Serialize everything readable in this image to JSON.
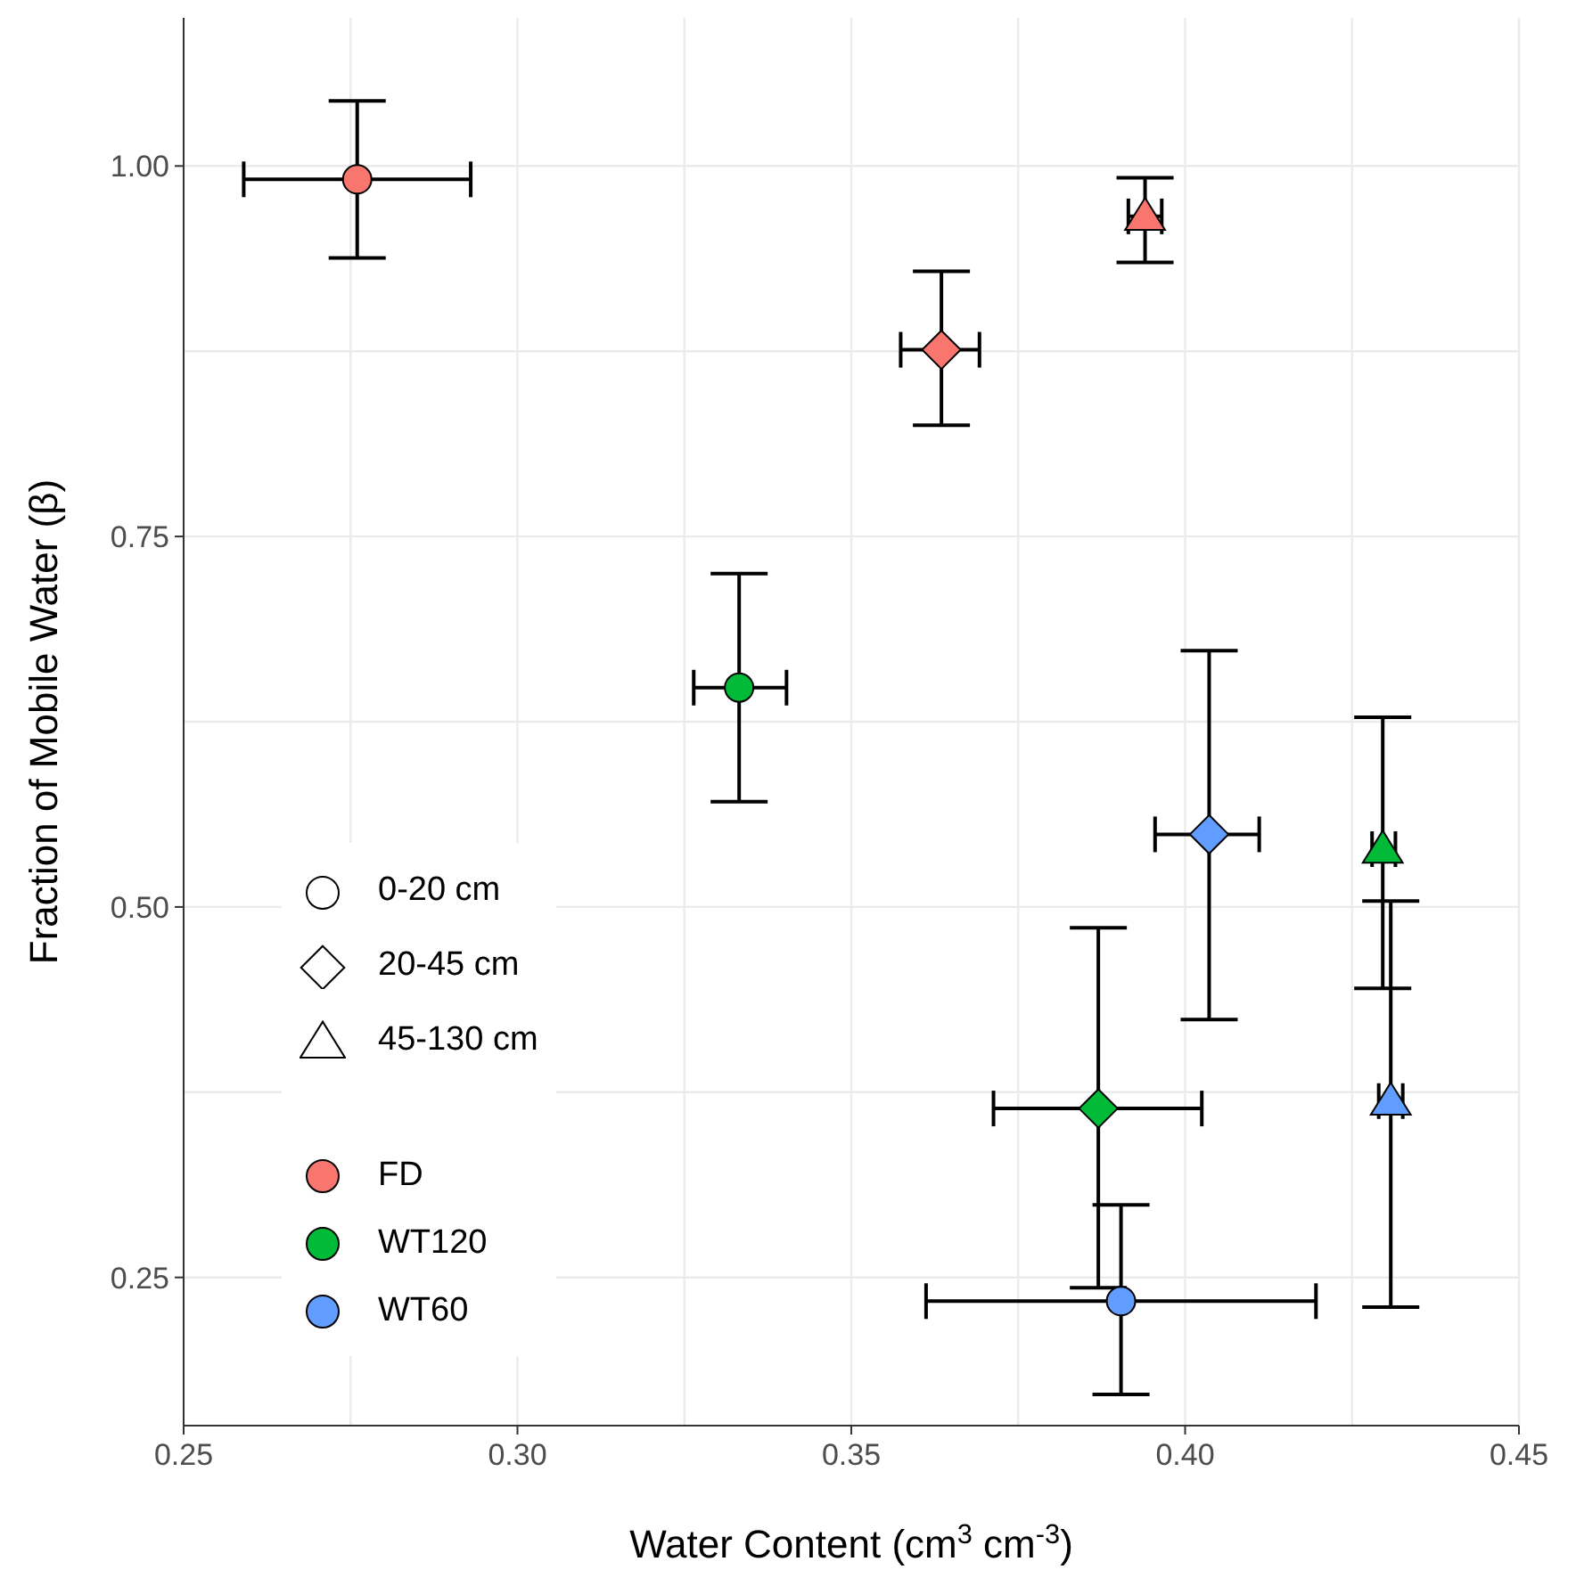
{
  "chart_data": {
    "type": "scatter",
    "xlabel": "Water Content (cm$^{3}$ cm$^{-3}$)",
    "ylabel": "Fraction of Mobile Water (β)",
    "xlim": [
      0.25,
      0.45
    ],
    "xticks": [
      0.25,
      {
        "value": 0.275,
        "label": null
      },
      "0.30",
      {
        "value": 0.325,
        "label": null
      },
      0.35,
      {
        "value": 0.375,
        "label": null
      },
      "0.40",
      {
        "value": 0.425,
        "label": null
      },
      0.45
    ],
    "ylim": [
      0.15,
      1.1
    ],
    "yticks": [
      0.25,
      {
        "value": 0.375,
        "label": null
      },
      "0.50",
      {
        "value": 0.625,
        "label": null
      },
      0.75,
      {
        "value": 0.875,
        "label": null
      },
      "1.00"
    ],
    "grid": true,
    "legend": "left",
    "series": [
      {
        "name": "FD",
        "color": "#f8766d",
        "marker": [
          "circle",
          "diamond",
          "triangle"
        ],
        "x": [
          0.276,
          0.3635,
          0.394
        ],
        "values": [
          0.991,
          0.876,
          0.966
        ],
        "errors": [
          [
            0.938,
            1.044
          ],
          [
            0.825,
            0.929
          ],
          [
            0.935,
            0.992
          ]
        ],
        "xerrors": [
          [
            0.259,
            0.293
          ],
          [
            0.3574,
            0.3692
          ],
          [
            0.3915,
            0.3965
          ]
        ]
      },
      {
        "name": "WT120",
        "color": "#00ba38",
        "marker": [
          "circle",
          "diamond",
          "triangle"
        ],
        "x": [
          0.3332,
          0.387,
          0.4296
        ],
        "values": [
          0.648,
          0.364,
          0.539
        ],
        "errors": [
          [
            0.571,
            0.725
          ],
          [
            0.243,
            0.486
          ],
          [
            0.445,
            0.628
          ]
        ],
        "xerrors": [
          [
            0.3264,
            0.3403
          ],
          [
            0.3713,
            0.4025
          ],
          [
            0.428,
            0.4315
          ]
        ]
      },
      {
        "name": "WT60",
        "color": "#619cff",
        "marker": [
          "circle",
          "diamond",
          "triangle"
        ],
        "x": [
          0.3904,
          0.4036,
          0.4308
        ],
        "values": [
          0.234,
          0.549,
          0.369
        ],
        "errors": [
          [
            0.171,
            0.299
          ],
          [
            0.424,
            0.673
          ],
          [
            0.23,
            0.504
          ]
        ],
        "xerrors": [
          [
            0.3612,
            0.4196
          ],
          [
            0.3955,
            0.4111
          ],
          [
            0.429,
            0.4326
          ]
        ]
      }
    ],
    "annotations": [
      "0-20 cm",
      "20-45 cm",
      "45-130 cm"
    ]
  }
}
